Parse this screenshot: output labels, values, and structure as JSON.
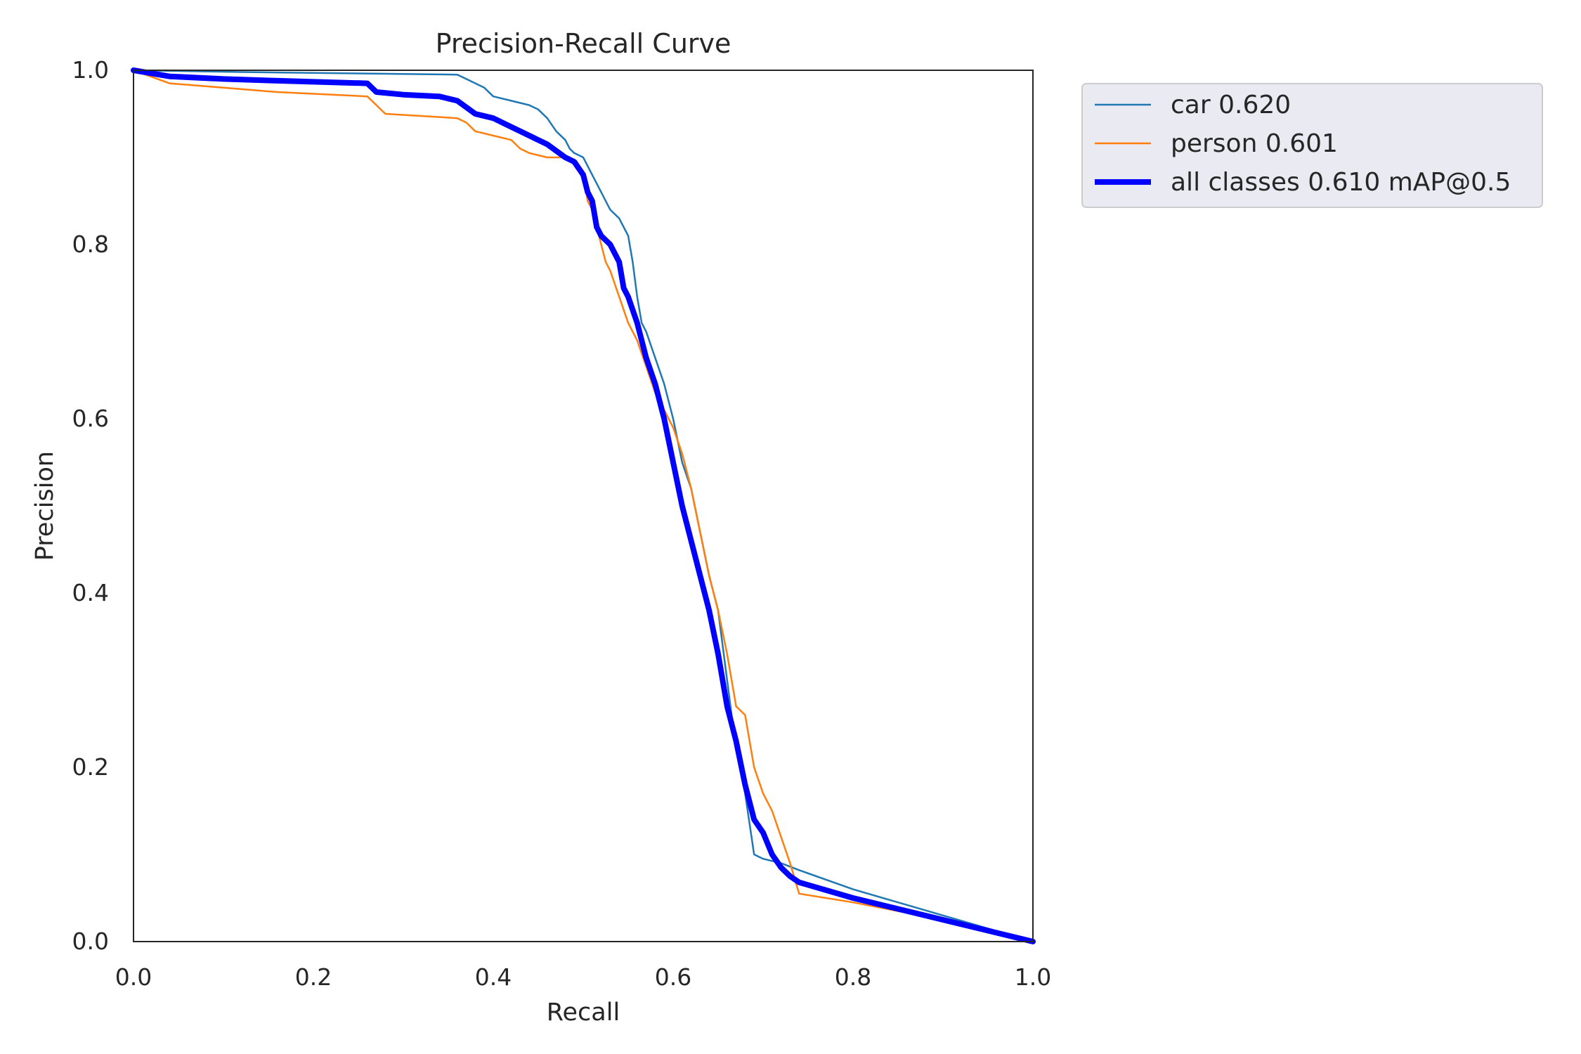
{
  "chart_data": {
    "type": "line",
    "title": "Precision-Recall Curve",
    "xlabel": "Recall",
    "ylabel": "Precision",
    "xlim": [
      0.0,
      1.0
    ],
    "ylim": [
      0.0,
      1.0
    ],
    "xticks": [
      "0.0",
      "0.2",
      "0.4",
      "0.6",
      "0.8",
      "1.0"
    ],
    "yticks": [
      "0.0",
      "0.2",
      "0.4",
      "0.6",
      "0.8",
      "1.0"
    ],
    "grid": false,
    "legend_position": "outside-top-right",
    "series": [
      {
        "name": "car 0.620",
        "color": "#1f77b4",
        "width": "thin",
        "x": [
          0.0,
          0.12,
          0.36,
          0.37,
          0.39,
          0.4,
          0.42,
          0.44,
          0.45,
          0.46,
          0.47,
          0.48,
          0.485,
          0.49,
          0.5,
          0.51,
          0.52,
          0.53,
          0.54,
          0.55,
          0.555,
          0.56,
          0.565,
          0.57,
          0.58,
          0.59,
          0.6,
          0.61,
          0.62,
          0.63,
          0.64,
          0.65,
          0.66,
          0.67,
          0.68,
          0.69,
          0.7,
          0.72,
          0.74,
          0.8,
          0.9,
          1.0
        ],
        "y": [
          1.0,
          0.998,
          0.995,
          0.99,
          0.98,
          0.97,
          0.965,
          0.96,
          0.955,
          0.945,
          0.93,
          0.92,
          0.91,
          0.905,
          0.9,
          0.88,
          0.86,
          0.84,
          0.83,
          0.81,
          0.78,
          0.74,
          0.71,
          0.7,
          0.67,
          0.64,
          0.6,
          0.55,
          0.52,
          0.47,
          0.42,
          0.38,
          0.3,
          0.22,
          0.17,
          0.1,
          0.095,
          0.09,
          0.082,
          0.06,
          0.03,
          0.0
        ]
      },
      {
        "name": "person 0.601",
        "color": "#ff7f0e",
        "width": "thin",
        "x": [
          0.0,
          0.04,
          0.1,
          0.16,
          0.26,
          0.27,
          0.28,
          0.36,
          0.37,
          0.38,
          0.4,
          0.42,
          0.43,
          0.44,
          0.46,
          0.48,
          0.49,
          0.5,
          0.505,
          0.51,
          0.52,
          0.525,
          0.53,
          0.54,
          0.55,
          0.56,
          0.57,
          0.58,
          0.59,
          0.6,
          0.61,
          0.62,
          0.63,
          0.64,
          0.65,
          0.66,
          0.67,
          0.68,
          0.69,
          0.7,
          0.71,
          0.72,
          0.73,
          0.74,
          0.8,
          0.9,
          1.0
        ],
        "y": [
          1.0,
          0.985,
          0.98,
          0.975,
          0.97,
          0.96,
          0.95,
          0.945,
          0.94,
          0.93,
          0.925,
          0.92,
          0.91,
          0.905,
          0.9,
          0.9,
          0.895,
          0.88,
          0.85,
          0.84,
          0.8,
          0.78,
          0.77,
          0.74,
          0.71,
          0.69,
          0.66,
          0.63,
          0.61,
          0.59,
          0.56,
          0.52,
          0.47,
          0.42,
          0.38,
          0.33,
          0.27,
          0.26,
          0.2,
          0.17,
          0.15,
          0.12,
          0.09,
          0.055,
          0.045,
          0.025,
          0.0
        ]
      },
      {
        "name": "all classes 0.610 mAP@0.5",
        "color": "#0000ff",
        "width": "thick",
        "x": [
          0.0,
          0.04,
          0.1,
          0.16,
          0.26,
          0.27,
          0.3,
          0.34,
          0.36,
          0.38,
          0.4,
          0.42,
          0.44,
          0.46,
          0.48,
          0.49,
          0.5,
          0.505,
          0.51,
          0.515,
          0.52,
          0.53,
          0.54,
          0.545,
          0.55,
          0.56,
          0.57,
          0.58,
          0.59,
          0.6,
          0.61,
          0.62,
          0.63,
          0.64,
          0.65,
          0.66,
          0.67,
          0.68,
          0.69,
          0.7,
          0.71,
          0.72,
          0.73,
          0.74,
          0.8,
          0.9,
          1.0
        ],
        "y": [
          1.0,
          0.993,
          0.99,
          0.988,
          0.985,
          0.975,
          0.972,
          0.97,
          0.965,
          0.95,
          0.945,
          0.935,
          0.925,
          0.915,
          0.9,
          0.895,
          0.88,
          0.86,
          0.85,
          0.82,
          0.81,
          0.8,
          0.78,
          0.75,
          0.74,
          0.71,
          0.67,
          0.64,
          0.6,
          0.55,
          0.5,
          0.46,
          0.42,
          0.38,
          0.33,
          0.27,
          0.23,
          0.18,
          0.14,
          0.125,
          0.1,
          0.085,
          0.075,
          0.068,
          0.05,
          0.025,
          0.0
        ]
      }
    ]
  }
}
